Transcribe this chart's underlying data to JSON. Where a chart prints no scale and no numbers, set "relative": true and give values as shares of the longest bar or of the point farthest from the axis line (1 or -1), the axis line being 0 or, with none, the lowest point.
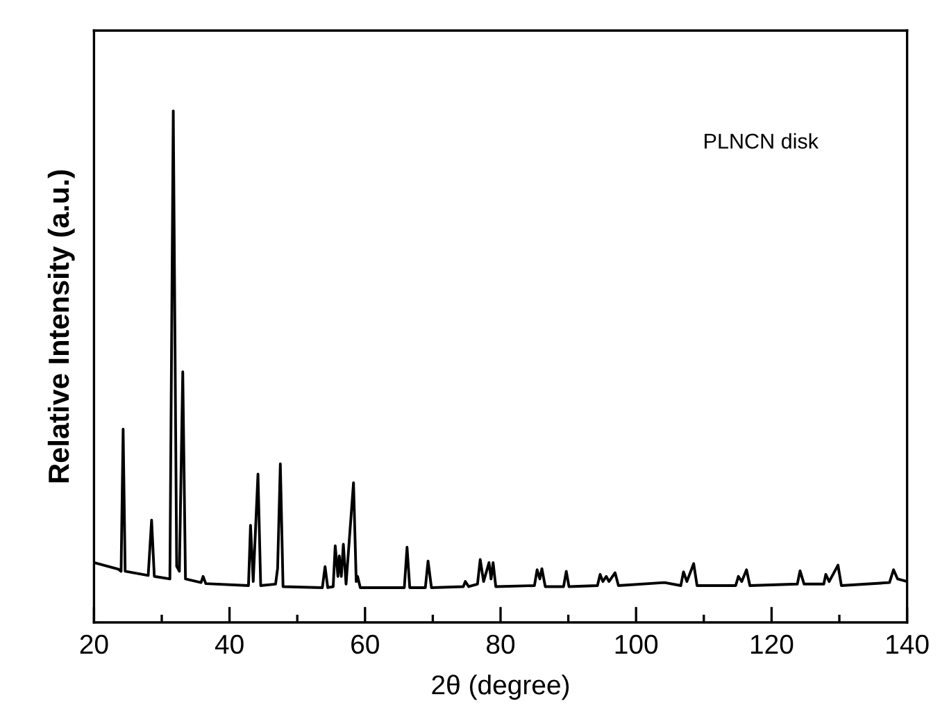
{
  "chart_data": {
    "type": "line",
    "relative": true,
    "xlabel": "2θ (degree)",
    "ylabel": "Relative Intensity (a.u.)",
    "annotations": [
      "PLNCN disk"
    ],
    "xlim": [
      20,
      140
    ],
    "xticks": [
      20,
      {
        "value": 30,
        "label": null
      },
      40,
      {
        "value": 50,
        "label": null
      },
      60,
      {
        "value": 70,
        "label": null
      },
      80,
      {
        "value": 90,
        "label": null
      },
      100,
      {
        "value": 110,
        "label": null
      },
      120,
      {
        "value": 130,
        "label": null
      },
      140
    ],
    "grid": false,
    "marker": "none",
    "line_style": "solid",
    "series": [
      {
        "color": "#000000",
        "x": [
          20,
          23.6,
          24.0,
          24.3,
          24.6,
          28.0,
          28.5,
          28.9,
          31.2,
          31.7,
          32.2,
          32.6,
          33.1,
          33.5,
          35.8,
          36.1,
          36.5,
          42.8,
          43.1,
          43.5,
          44.2,
          44.6,
          46.8,
          47.1,
          47.5,
          47.9,
          53.7,
          54.1,
          54.5,
          55.3,
          55.6,
          56.0,
          56.2,
          56.5,
          56.8,
          57.2,
          58.3,
          58.7,
          58.9,
          59.3,
          65.8,
          66.2,
          66.6,
          68.9,
          69.3,
          69.8,
          74.5,
          74.8,
          75.3,
          76.6,
          77.0,
          77.5,
          78.3,
          78.6,
          78.9,
          79.3,
          85.0,
          85.4,
          85.8,
          86.1,
          86.6,
          89.3,
          89.7,
          90.1,
          94.3,
          94.7,
          95.1,
          95.6,
          96.0,
          96.9,
          97.4,
          104.2,
          106.6,
          107.0,
          107.5,
          108.5,
          109.0,
          114.7,
          115.1,
          115.6,
          116.3,
          116.8,
          123.8,
          124.2,
          124.8,
          127.7,
          128.0,
          128.5,
          129.8,
          130.3,
          137.4,
          138.0,
          138.6,
          140
        ],
        "values": [
          0.117,
          0.104,
          0.1,
          0.378,
          0.1,
          0.092,
          0.2,
          0.09,
          0.085,
          1.0,
          0.11,
          0.1,
          0.49,
          0.085,
          0.078,
          0.09,
          0.076,
          0.072,
          0.19,
          0.08,
          0.29,
          0.072,
          0.075,
          0.106,
          0.31,
          0.07,
          0.068,
          0.109,
          0.068,
          0.07,
          0.15,
          0.09,
          0.13,
          0.09,
          0.153,
          0.075,
          0.273,
          0.08,
          0.09,
          0.068,
          0.068,
          0.147,
          0.068,
          0.068,
          0.12,
          0.068,
          0.07,
          0.08,
          0.07,
          0.075,
          0.123,
          0.08,
          0.117,
          0.085,
          0.117,
          0.07,
          0.072,
          0.103,
          0.085,
          0.105,
          0.07,
          0.07,
          0.1,
          0.07,
          0.072,
          0.094,
          0.08,
          0.09,
          0.08,
          0.097,
          0.072,
          0.078,
          0.072,
          0.099,
          0.08,
          0.115,
          0.072,
          0.072,
          0.09,
          0.08,
          0.103,
          0.072,
          0.075,
          0.101,
          0.075,
          0.075,
          0.094,
          0.08,
          0.112,
          0.072,
          0.078,
          0.103,
          0.085,
          0.08
        ]
      }
    ]
  }
}
